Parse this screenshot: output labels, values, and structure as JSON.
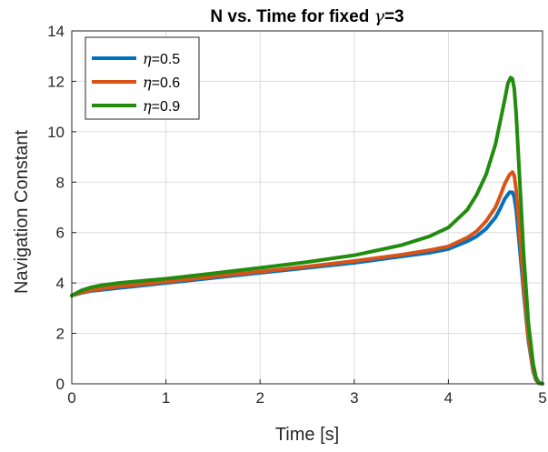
{
  "chart_data": {
    "type": "line",
    "title": "N vs. Time for fixed γ=3",
    "title_prefix": "N vs. Time for fixed ",
    "title_symbol": "γ",
    "title_suffix": "=3",
    "xlabel": "Time [s]",
    "ylabel": "Navigation Constant",
    "xlim": [
      0,
      5
    ],
    "ylim": [
      0,
      14
    ],
    "xticks": [
      0,
      1,
      2,
      3,
      4,
      5
    ],
    "yticks": [
      0,
      2,
      4,
      6,
      8,
      10,
      12,
      14
    ],
    "grid": true,
    "legend_position": "top-left",
    "series": [
      {
        "name": "η=0.5",
        "symbol": "η",
        "value_label": "=0.5",
        "color": "#0072BD",
        "x": [
          0,
          0.1,
          0.2,
          0.3,
          0.5,
          0.7,
          1.0,
          1.5,
          2.0,
          2.5,
          3.0,
          3.5,
          3.8,
          4.0,
          4.2,
          4.3,
          4.4,
          4.5,
          4.55,
          4.6,
          4.65,
          4.68,
          4.7,
          4.72,
          4.75,
          4.8,
          4.85,
          4.9,
          4.93,
          4.96,
          5.0
        ],
        "y": [
          3.5,
          3.6,
          3.68,
          3.72,
          3.8,
          3.88,
          4.0,
          4.2,
          4.4,
          4.6,
          4.8,
          5.05,
          5.2,
          5.35,
          5.65,
          5.85,
          6.15,
          6.6,
          6.95,
          7.35,
          7.6,
          7.6,
          7.4,
          6.9,
          5.7,
          3.6,
          1.7,
          0.5,
          0.15,
          0.02,
          0.0
        ]
      },
      {
        "name": "η=0.6",
        "symbol": "η",
        "value_label": "=0.6",
        "color": "#D95319",
        "x": [
          0,
          0.1,
          0.2,
          0.3,
          0.5,
          0.7,
          1.0,
          1.5,
          2.0,
          2.5,
          3.0,
          3.5,
          3.8,
          4.0,
          4.2,
          4.3,
          4.4,
          4.5,
          4.55,
          4.6,
          4.65,
          4.68,
          4.7,
          4.72,
          4.75,
          4.8,
          4.85,
          4.9,
          4.93,
          4.96,
          5.0
        ],
        "y": [
          3.5,
          3.62,
          3.7,
          3.76,
          3.86,
          3.93,
          4.05,
          4.25,
          4.45,
          4.65,
          4.87,
          5.12,
          5.3,
          5.45,
          5.8,
          6.05,
          6.45,
          7.0,
          7.45,
          7.95,
          8.3,
          8.4,
          8.25,
          7.7,
          6.3,
          3.9,
          1.8,
          0.55,
          0.18,
          0.03,
          0.0
        ]
      },
      {
        "name": "η=0.9",
        "symbol": "η",
        "value_label": "=0.9",
        "color": "#218C0E",
        "x": [
          0,
          0.1,
          0.2,
          0.3,
          0.5,
          0.7,
          1.0,
          1.5,
          2.0,
          2.5,
          3.0,
          3.5,
          3.8,
          4.0,
          4.2,
          4.3,
          4.4,
          4.5,
          4.55,
          4.6,
          4.63,
          4.66,
          4.68,
          4.7,
          4.72,
          4.75,
          4.8,
          4.85,
          4.9,
          4.93,
          4.96,
          5.0
        ],
        "y": [
          3.5,
          3.7,
          3.82,
          3.9,
          4.0,
          4.07,
          4.17,
          4.38,
          4.6,
          4.83,
          5.1,
          5.5,
          5.85,
          6.2,
          6.9,
          7.5,
          8.3,
          9.5,
          10.4,
          11.3,
          11.9,
          12.15,
          12.1,
          11.7,
          10.7,
          8.6,
          5.1,
          2.4,
          0.8,
          0.25,
          0.05,
          0.0
        ]
      }
    ]
  }
}
